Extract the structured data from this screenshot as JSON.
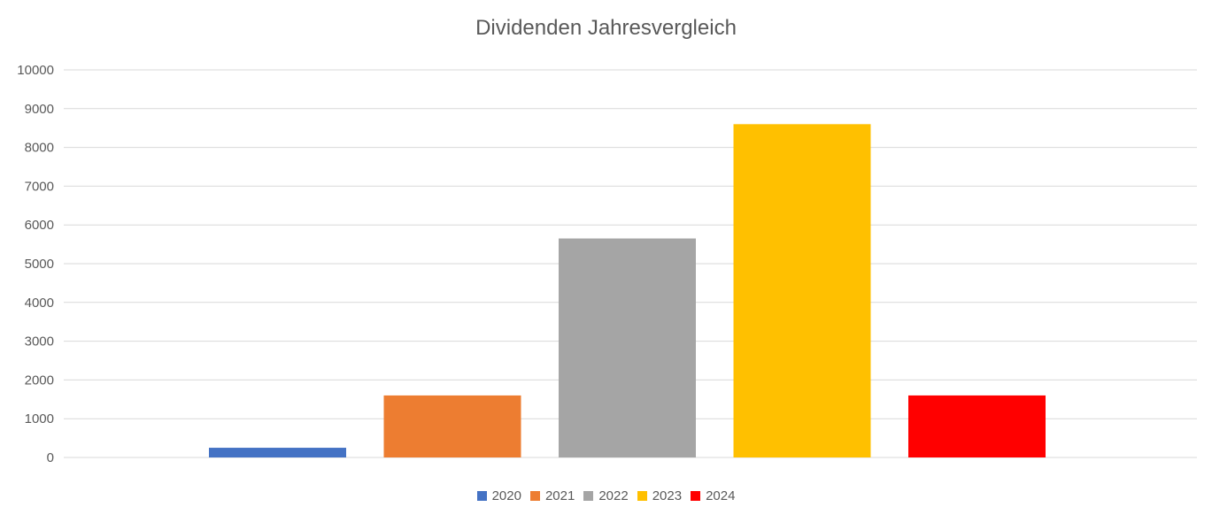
{
  "chart_data": {
    "type": "bar",
    "title": "Dividenden Jahresvergleich",
    "xlabel": "",
    "ylabel": "",
    "ylim": [
      0,
      10000
    ],
    "yticks": [
      "0",
      "1000",
      "2000",
      "3000",
      "4000",
      "5000",
      "6000",
      "7000",
      "8000",
      "9000",
      "10000"
    ],
    "grid": true,
    "legend_position": "bottom",
    "series": [
      {
        "name": "2020",
        "value": 250,
        "color": "#4472C4"
      },
      {
        "name": "2021",
        "value": 1600,
        "color": "#ED7D31"
      },
      {
        "name": "2022",
        "value": 5650,
        "color": "#A5A5A5"
      },
      {
        "name": "2023",
        "value": 8600,
        "color": "#FFC000"
      },
      {
        "name": "2024",
        "value": 1600,
        "color": "#FF0000"
      }
    ]
  }
}
